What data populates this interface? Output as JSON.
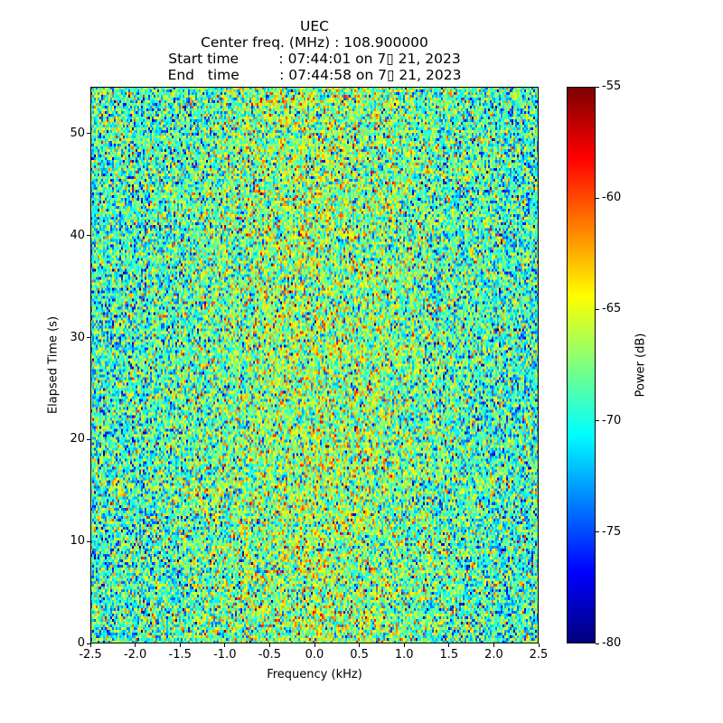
{
  "chart_data": {
    "type": "heatmap",
    "title_lines": [
      "UEC",
      "Center freq. (MHz) : 108.900000",
      "Start time         : 07:44:01 on 7▯ 21, 2023",
      "End   time         : 07:44:58 on 7▯ 21, 2023"
    ],
    "xlabel": "Frequency (kHz)",
    "ylabel": "Elapsed Time (s)",
    "xlim": [
      -2.5,
      2.5
    ],
    "ylim": [
      0,
      54.6
    ],
    "xticks": [
      "-2.5",
      "-2.0",
      "-1.5",
      "-1.0",
      "-0.5",
      "0.0",
      "0.5",
      "1.0",
      "1.5",
      "2.0",
      "2.5"
    ],
    "yticks": [
      "0",
      "10",
      "20",
      "30",
      "40",
      "50"
    ],
    "colormap": "jet",
    "colorbar": {
      "label": "Power (dB)",
      "range": [
        -80,
        -55
      ],
      "ticks": [
        "-80",
        "-75",
        "-70",
        "-65",
        "-60",
        "-55"
      ]
    },
    "grid": {
      "freq_bins": 248,
      "time_bins": 205
    },
    "noise_model": {
      "edge_mean_db": -69.5,
      "center_mean_db": -67,
      "std_db": 3.8
    }
  }
}
